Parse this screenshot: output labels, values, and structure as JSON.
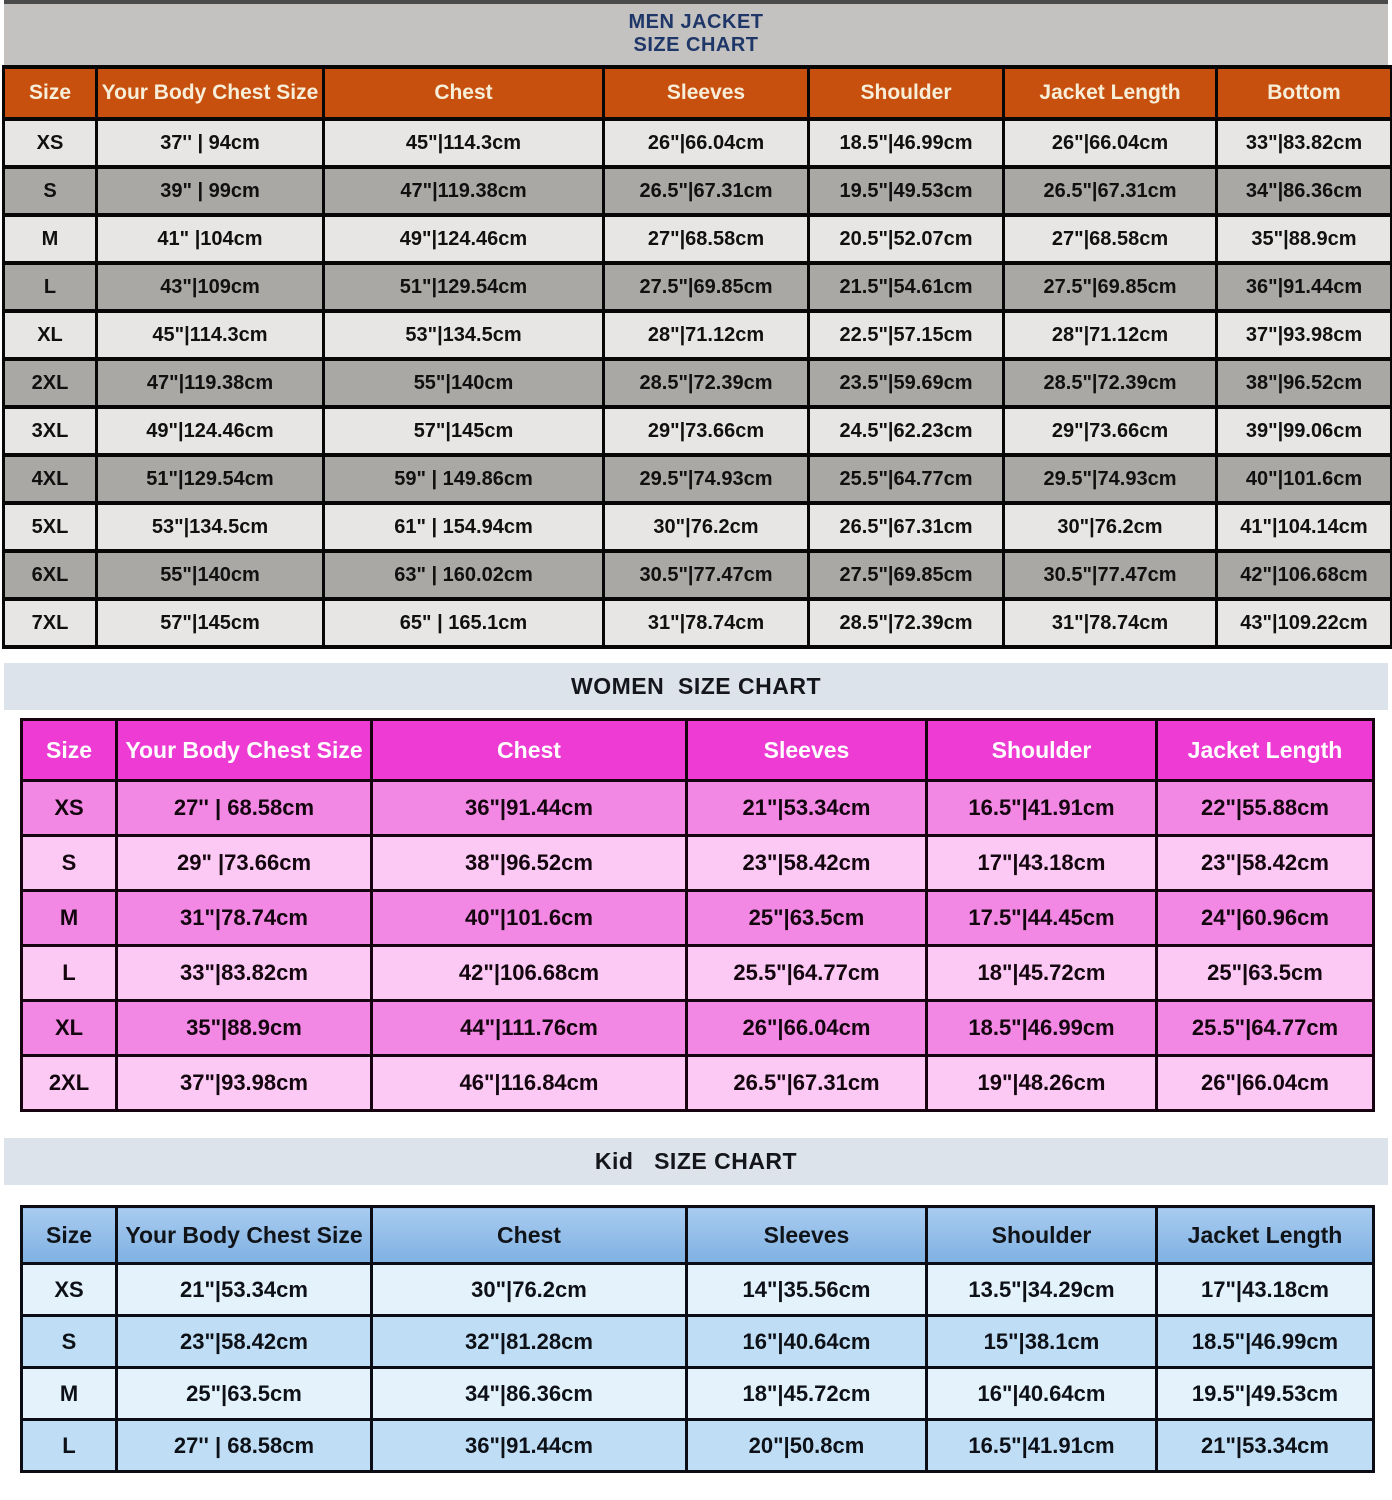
{
  "men_chart": {
    "title_line1": "MEN JACKET",
    "title_line2": "SIZE CHART",
    "headers": [
      "Size",
      "Your Body Chest Size",
      "Chest",
      "Sleeves",
      "Shoulder",
      "Jacket Length",
      "Bottom"
    ],
    "rows": [
      [
        "XS",
        "37'' | 94cm",
        "45\"|114.3cm",
        "26\"|66.04cm",
        "18.5\"|46.99cm",
        "26\"|66.04cm",
        "33\"|83.82cm"
      ],
      [
        "S",
        "39\" | 99cm",
        "47\"|119.38cm",
        "26.5\"|67.31cm",
        "19.5\"|49.53cm",
        "26.5\"|67.31cm",
        "34\"|86.36cm"
      ],
      [
        "M",
        "41\" |104cm",
        "49\"|124.46cm",
        "27\"|68.58cm",
        "20.5\"|52.07cm",
        "27\"|68.58cm",
        "35\"|88.9cm"
      ],
      [
        "L",
        "43\"|109cm",
        "51\"|129.54cm",
        "27.5\"|69.85cm",
        "21.5\"|54.61cm",
        "27.5\"|69.85cm",
        "36\"|91.44cm"
      ],
      [
        "XL",
        "45\"|114.3cm",
        "53\"|134.5cm",
        "28\"|71.12cm",
        "22.5\"|57.15cm",
        "28\"|71.12cm",
        "37\"|93.98cm"
      ],
      [
        "2XL",
        "47\"|119.38cm",
        "55\"|140cm",
        "28.5\"|72.39cm",
        "23.5\"|59.69cm",
        "28.5\"|72.39cm",
        "38\"|96.52cm"
      ],
      [
        "3XL",
        "49\"|124.46cm",
        "57\"|145cm",
        "29\"|73.66cm",
        "24.5\"|62.23cm",
        "29\"|73.66cm",
        "39\"|99.06cm"
      ],
      [
        "4XL",
        "51\"|129.54cm",
        "59\" | 149.86cm",
        "29.5\"|74.93cm",
        "25.5\"|64.77cm",
        "29.5\"|74.93cm",
        "40\"|101.6cm"
      ],
      [
        "5XL",
        "53\"|134.5cm",
        "61\" | 154.94cm",
        "30\"|76.2cm",
        "26.5\"|67.31cm",
        "30\"|76.2cm",
        "41\"|104.14cm"
      ],
      [
        "6XL",
        "55\"|140cm",
        "63\" | 160.02cm",
        "30.5\"|77.47cm",
        "27.5\"|69.85cm",
        "30.5\"|77.47cm",
        "42\"|106.68cm"
      ],
      [
        "7XL",
        "57\"|145cm",
        "65\" | 165.1cm",
        "31\"|78.74cm",
        "28.5\"|72.39cm",
        "31\"|78.74cm",
        "43\"|109.22cm"
      ]
    ]
  },
  "women_chart": {
    "title": "WOMEN  SIZE CHART",
    "headers": [
      "Size",
      "Your Body Chest Size",
      "Chest",
      "Sleeves",
      "Shoulder",
      "Jacket Length"
    ],
    "rows": [
      [
        "XS",
        "27'' | 68.58cm",
        "36\"|91.44cm",
        "21\"|53.34cm",
        "16.5\"|41.91cm",
        "22\"|55.88cm"
      ],
      [
        "S",
        "29\" |73.66cm",
        "38\"|96.52cm",
        "23\"|58.42cm",
        "17\"|43.18cm",
        "23\"|58.42cm"
      ],
      [
        "M",
        "31\"|78.74cm",
        "40\"|101.6cm",
        "25\"|63.5cm",
        "17.5\"|44.45cm",
        "24\"|60.96cm"
      ],
      [
        "L",
        "33\"|83.82cm",
        "42\"|106.68cm",
        "25.5\"|64.77cm",
        "18\"|45.72cm",
        "25\"|63.5cm"
      ],
      [
        "XL",
        "35\"|88.9cm",
        "44\"|111.76cm",
        "26\"|66.04cm",
        "18.5\"|46.99cm",
        "25.5\"|64.77cm"
      ],
      [
        "2XL",
        "37\"|93.98cm",
        "46\"|116.84cm",
        "26.5\"|67.31cm",
        "19\"|48.26cm",
        "26\"|66.04cm"
      ]
    ]
  },
  "kid_chart": {
    "title": "Kid   SIZE CHART",
    "headers": [
      "Size",
      "Your Body Chest Size",
      "Chest",
      "Sleeves",
      "Shoulder",
      "Jacket Length"
    ],
    "rows": [
      [
        "XS",
        "21\"|53.34cm",
        "30\"|76.2cm",
        "14\"|35.56cm",
        "13.5\"|34.29cm",
        "17\"|43.18cm"
      ],
      [
        "S",
        "23\"|58.42cm",
        "32\"|81.28cm",
        "16\"|40.64cm",
        "15\"|38.1cm",
        "18.5\"|46.99cm"
      ],
      [
        "M",
        "25\"|63.5cm",
        "34\"|86.36cm",
        "18\"|45.72cm",
        "16\"|40.64cm",
        "19.5\"|49.53cm"
      ],
      [
        "L",
        "27'' | 68.58cm",
        "36\"|91.44cm",
        "20\"|50.8cm",
        "16.5\"|41.91cm",
        "21\"|53.34cm"
      ]
    ]
  },
  "colors": {
    "men_title_text": "#1e3668",
    "men_title_bg": "#c3c2c0",
    "men_header_bg": "#c7500e",
    "men_header_text": "#f7eed9",
    "men_row_light": "#e7e6e4",
    "men_row_dark": "#a9a8a5",
    "section_title_bg": "#dce3eb",
    "women_header_bg": "#ee3bd4",
    "women_row_dark": "#f287e4",
    "women_row_light": "#fbc9f4",
    "kid_header_bg": "#92bde9",
    "kid_row_light": "#e4f2fb",
    "kid_row_dark": "#bfdef5"
  }
}
